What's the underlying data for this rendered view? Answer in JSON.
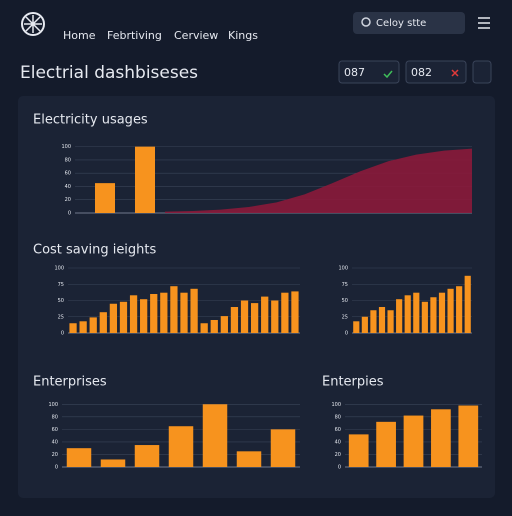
{
  "nav": {
    "items": [
      "Home",
      "Febrtiving",
      "Cerview",
      "Kings"
    ],
    "search": "Celoy stte"
  },
  "header": {
    "title": "Electrial dashbiseses",
    "kpis": [
      "087",
      "082"
    ]
  },
  "sections": [
    {
      "title": "Electricity usages"
    },
    {
      "title": "Cost saving ieights"
    },
    {
      "title": "Enterprises"
    },
    {
      "title": "Enterpies"
    }
  ],
  "charts": [
    {
      "type": "bar",
      "values": [
        45,
        100
      ],
      "area": [
        2,
        3,
        5,
        9,
        16,
        28,
        45,
        63,
        78,
        88,
        94,
        97
      ],
      "ylim": [
        0,
        110
      ],
      "yticks": [
        0,
        20,
        40,
        60,
        80,
        100
      ]
    },
    {
      "type": "bar",
      "values": [
        15,
        18,
        24,
        32,
        45,
        48,
        58,
        52,
        60,
        62,
        72,
        62,
        68,
        15,
        20,
        26,
        40,
        50,
        46,
        56,
        50,
        62,
        64
      ],
      "ylim": [
        0,
        100
      ],
      "yticks": [
        0,
        25,
        50,
        75,
        100
      ]
    },
    {
      "type": "bar",
      "values": [
        18,
        25,
        35,
        40,
        35,
        52,
        58,
        62,
        48,
        55,
        62,
        68,
        72,
        88
      ],
      "ylim": [
        0,
        100
      ],
      "yticks": [
        0,
        25,
        50,
        75,
        100
      ]
    },
    {
      "type": "bar",
      "values": [
        30,
        12,
        35,
        65,
        100,
        25,
        60
      ],
      "ylim": [
        0,
        110
      ],
      "yticks": [
        0,
        20,
        40,
        60,
        80,
        100
      ]
    },
    {
      "type": "bar",
      "values": [
        52,
        72,
        82,
        92,
        98
      ],
      "ylim": [
        0,
        110
      ],
      "yticks": [
        0,
        20,
        40,
        60,
        80,
        100
      ]
    }
  ]
}
